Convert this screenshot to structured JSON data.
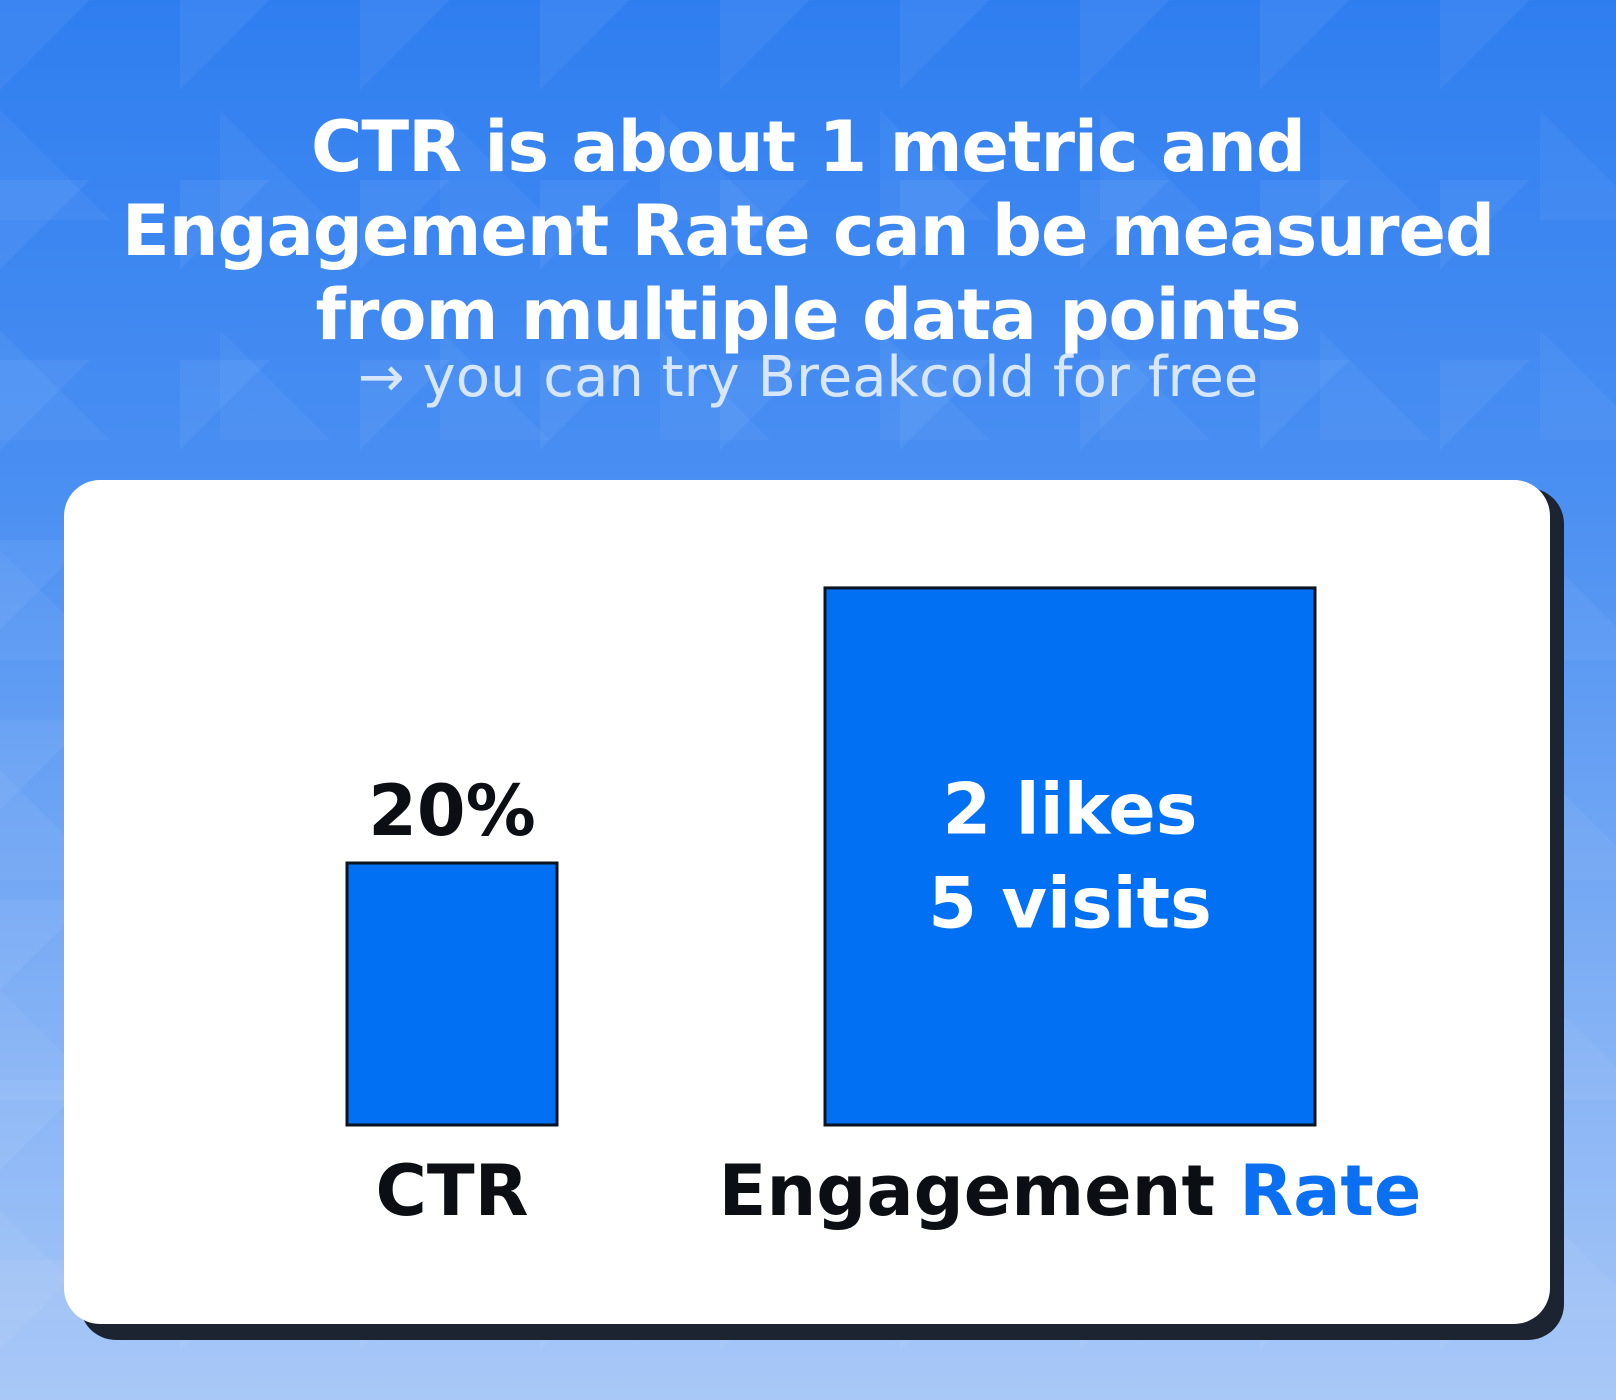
{
  "header": {
    "title_lines": [
      "CTR is about 1 metric and",
      "Engagement Rate can be measured",
      "from multiple data points"
    ],
    "subtitle": "→ you can try Breakcold for free"
  },
  "colors": {
    "bar": "#0270f2",
    "accent_text": "#0a6ff0",
    "card_shadow": "#1b2430"
  },
  "chart_data": {
    "type": "bar",
    "categories": [
      "CTR",
      "Engagement Rate"
    ],
    "category_label_parts": [
      [
        {
          "text": "CTR",
          "accent": false
        }
      ],
      [
        {
          "text": "Engagement ",
          "accent": false
        },
        {
          "text": "Rate",
          "accent": true
        }
      ]
    ],
    "relative_heights": [
      1,
      2.05
    ],
    "data_labels": [
      {
        "lines": [
          "20%"
        ],
        "position": "above"
      },
      {
        "lines": [
          "2 likes",
          "5 visits"
        ],
        "position": "inside"
      }
    ]
  }
}
